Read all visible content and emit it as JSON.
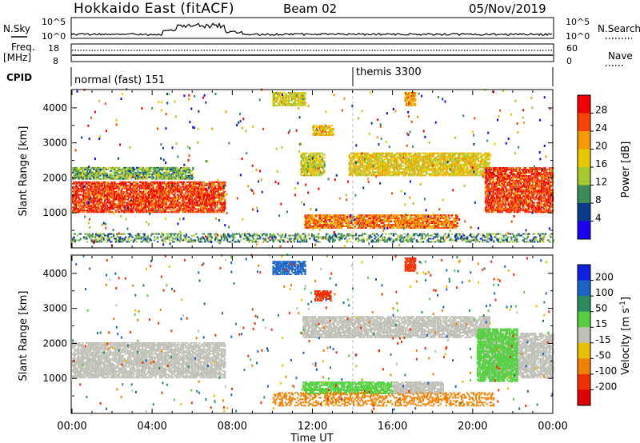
{
  "header": {
    "site": "Hokkaido East (fitACF)",
    "beam": "Beam 02",
    "date": "05/Nov/2019"
  },
  "top_panels": {
    "nsky_label": "N.Sky",
    "nsky_ticks": [
      "10^5",
      "10^0"
    ],
    "nsearch_label": "N.Search",
    "nsearch_ticks": [
      "10^5",
      "10^0"
    ],
    "freq_label_1": "Freq.",
    "freq_label_2": "[MHz]",
    "freq_ticks": [
      "18",
      "8"
    ],
    "nave_label": "Nave",
    "nave_ticks": [
      "60",
      "0"
    ],
    "cpid_label": "CPID",
    "cpid_modes": [
      {
        "start_hour": 0.0,
        "label": "normal (fast) 151"
      },
      {
        "start_hour": 14.0,
        "label": "themis 3300"
      }
    ]
  },
  "time_axis": {
    "label": "Time UT",
    "ticks": [
      "00:00",
      "04:00",
      "08:00",
      "12:00",
      "16:00",
      "20:00",
      "00:00"
    ],
    "range_hours": [
      0,
      24
    ]
  },
  "power_scale": {
    "label": "Power [dB]",
    "ticks": [
      "28",
      "24",
      "20",
      "16",
      "12",
      "8",
      "4"
    ],
    "colors": [
      "#f00000",
      "#f84400",
      "#f49a00",
      "#e8c800",
      "#a8c830",
      "#3c8c5a",
      "#0a3a8c",
      "#1a00f0"
    ]
  },
  "velocity_scale": {
    "label": "Velocity [m s",
    "label_exp": "-1",
    "label_close": "]",
    "ticks": [
      "200",
      "100",
      "50",
      "15",
      "-15",
      "-50",
      "-100",
      "-200"
    ],
    "colors": [
      "#1020e0",
      "#1a64c8",
      "#2a8c5c",
      "#55d040",
      "#c0c0b8",
      "#e8c000",
      "#f08000",
      "#f03000",
      "#e00000"
    ]
  },
  "chart_data": [
    {
      "type": "heatmap",
      "title": "",
      "xlabel": "Time UT",
      "ylabel": "Slant Range [km]",
      "ylim": [
        0,
        4500
      ],
      "y_ticks": [
        1000,
        2000,
        3000,
        4000
      ],
      "x_range_hours": [
        0,
        24
      ],
      "colorbar_label": "Power [dB]",
      "colorbar_range": [
        0,
        32
      ],
      "echo_regions": [
        {
          "t0": 0.0,
          "t1": 7.6,
          "r0": 1000,
          "r1": 1900,
          "value": 27,
          "note": "strong band, tilting"
        },
        {
          "t0": 0.0,
          "t1": 6.0,
          "r0": 1950,
          "r1": 2300,
          "value": 12
        },
        {
          "t0": 10.0,
          "t1": 11.6,
          "r0": 4050,
          "r1": 4450,
          "value": 16
        },
        {
          "t0": 12.0,
          "t1": 13.0,
          "r0": 3200,
          "r1": 3500,
          "value": 20
        },
        {
          "t0": 11.4,
          "t1": 12.6,
          "r0": 2050,
          "r1": 2700,
          "value": 16
        },
        {
          "t0": 13.8,
          "t1": 20.8,
          "r0": 2050,
          "r1": 2700,
          "value": 18
        },
        {
          "t0": 11.6,
          "t1": 19.2,
          "r0": 550,
          "r1": 950,
          "value": 24
        },
        {
          "t0": 20.6,
          "t1": 24.0,
          "r0": 1000,
          "r1": 2300,
          "value": 27
        },
        {
          "t0": 16.6,
          "t1": 17.1,
          "r0": 4050,
          "r1": 4450,
          "value": 22
        },
        {
          "t0": 0.0,
          "t1": 24.0,
          "r0": 150,
          "r1": 400,
          "value": 10,
          "note": "near-range ground scatter"
        }
      ]
    },
    {
      "type": "heatmap",
      "title": "",
      "xlabel": "Time UT",
      "ylabel": "Slant Range [km]",
      "ylim": [
        0,
        4500
      ],
      "y_ticks": [
        1000,
        2000,
        3000,
        4000
      ],
      "x_range_hours": [
        0,
        24
      ],
      "colorbar_label": "Velocity [m s-1]",
      "colorbar_range": [
        -200,
        200
      ],
      "echo_regions": [
        {
          "t0": 0.0,
          "t1": 7.6,
          "r0": 1000,
          "r1": 2000,
          "value": 0,
          "note": "grey ground scatter"
        },
        {
          "t0": 10.0,
          "t1": 11.6,
          "r0": 3950,
          "r1": 4350,
          "value": 150
        },
        {
          "t0": 12.1,
          "t1": 12.9,
          "r0": 3200,
          "r1": 3500,
          "value": -180
        },
        {
          "t0": 11.5,
          "t1": 20.8,
          "r0": 2150,
          "r1": 2750,
          "value": 0
        },
        {
          "t0": 11.5,
          "t1": 16.0,
          "r0": 550,
          "r1": 900,
          "value": 40
        },
        {
          "t0": 16.0,
          "t1": 18.5,
          "r0": 550,
          "r1": 900,
          "value": 0
        },
        {
          "t0": 20.5,
          "t1": 24.0,
          "r0": 1000,
          "r1": 2300,
          "value": 0
        },
        {
          "t0": 20.2,
          "t1": 22.2,
          "r0": 900,
          "r1": 2400,
          "value": 40
        },
        {
          "t0": 16.6,
          "t1": 17.1,
          "r0": 4050,
          "r1": 4450,
          "value": -180
        },
        {
          "t0": 10.0,
          "t1": 21.0,
          "r0": 200,
          "r1": 600,
          "value": -60,
          "note": "orange near range"
        }
      ]
    }
  ]
}
